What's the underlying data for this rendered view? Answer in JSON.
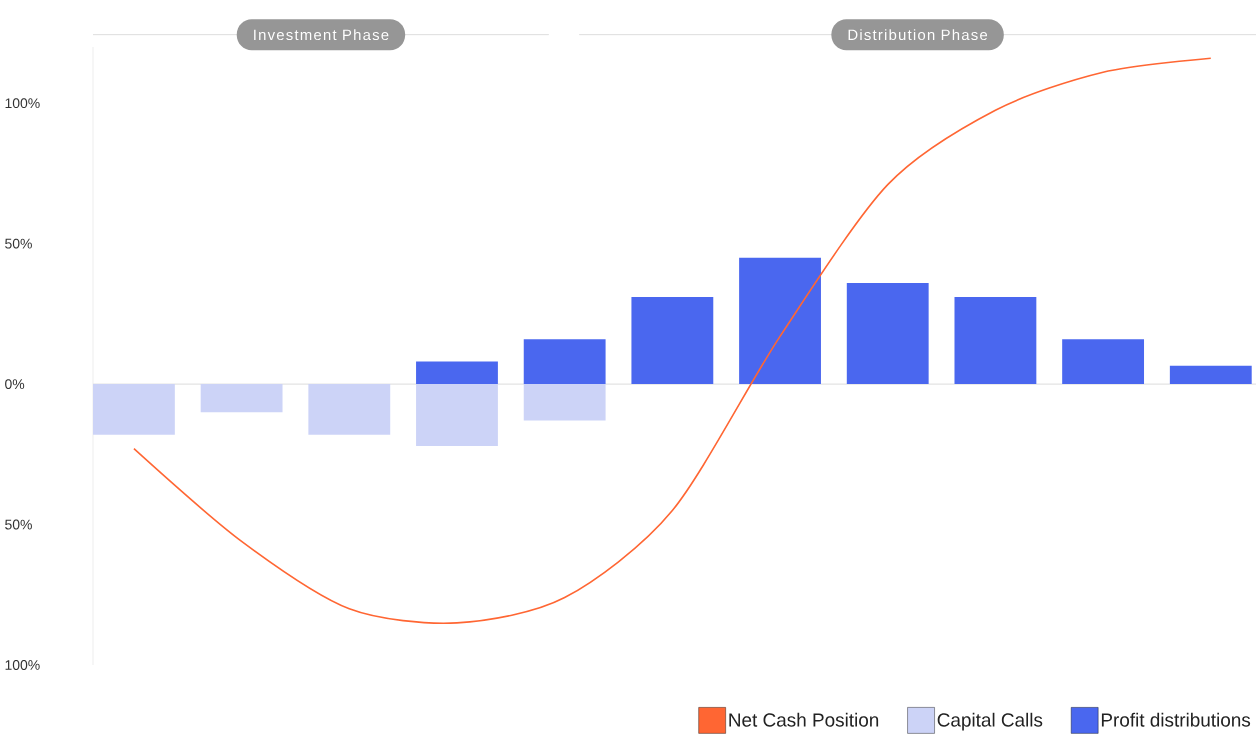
{
  "chart_data": {
    "type": "bar",
    "stacked": true,
    "categories": [
      null,
      null,
      null,
      null,
      null,
      null,
      null,
      null,
      null,
      null,
      null
    ],
    "series": [
      {
        "name": "Net Cash Position",
        "type": "line",
        "color": "#ff6633",
        "values": [
          -23,
          -56,
          -80,
          -85,
          -76,
          -45,
          17,
          71,
          97.5,
          111,
          116
        ]
      },
      {
        "name": "Capital Calls",
        "color": "#ccd3f7",
        "values": [
          -18,
          -10,
          -18,
          -22,
          -13,
          null,
          null,
          null,
          null,
          null,
          null
        ]
      },
      {
        "name": "Profit distributions",
        "color": "#4a67ef",
        "values": [
          null,
          null,
          null,
          8,
          16,
          31,
          45,
          36,
          31,
          16,
          6.5
        ]
      }
    ],
    "ylim": [
      -100,
      120
    ],
    "yticks": [
      {
        "value": 100,
        "label": "100%"
      },
      {
        "value": 50,
        "label": "50%"
      },
      {
        "value": 0,
        "label": "0%"
      },
      {
        "value": -50,
        "label": "50%"
      },
      {
        "value": -100,
        "label": "100%"
      }
    ],
    "ref_lines": [
      {
        "axis": "y",
        "value": 0,
        "color": "#e3e3e3"
      }
    ],
    "annotations": [
      "Investment Phase",
      "Distribution Phase"
    ],
    "legend": "bottom right"
  }
}
